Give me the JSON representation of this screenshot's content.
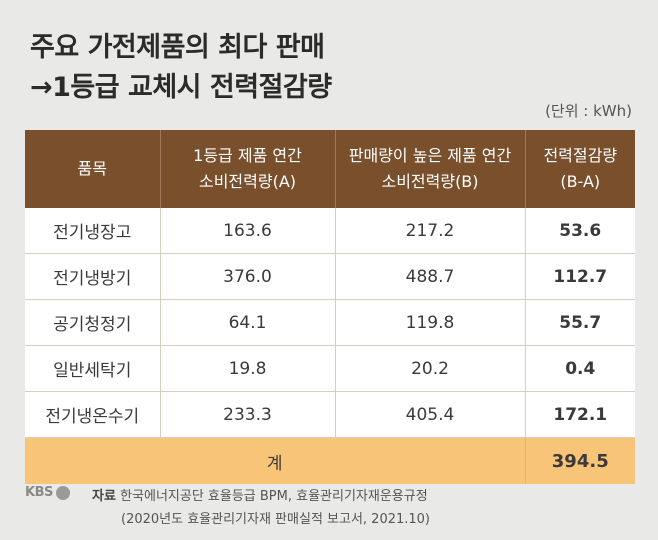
{
  "title": {
    "line1": "주요 가전제품의 최다 판매",
    "line2": "→1등급 교체시 전력절감량"
  },
  "unit": "(단위 : kWh)",
  "chart_data": {
    "type": "table",
    "columns": [
      {
        "line1": "품목",
        "line2": ""
      },
      {
        "line1": "1등급 제품 연간",
        "line2": "소비전력량(A)"
      },
      {
        "line1": "판매량이 높은 제품 연간",
        "line2": "소비전력량(B)"
      },
      {
        "line1": "전력절감량",
        "line2": "(B-A)"
      }
    ],
    "rows": [
      {
        "name": "전기냉장고",
        "a": "163.6",
        "b": "217.2",
        "diff": "53.6"
      },
      {
        "name": "전기냉방기",
        "a": "376.0",
        "b": "488.7",
        "diff": "112.7"
      },
      {
        "name": "공기청정기",
        "a": "64.1",
        "b": "119.8",
        "diff": "55.7"
      },
      {
        "name": "일반세탁기",
        "a": "19.8",
        "b": "20.2",
        "diff": "0.4"
      },
      {
        "name": "전기냉온수기",
        "a": "233.3",
        "b": "405.4",
        "diff": "172.1"
      }
    ],
    "total": {
      "label": "계",
      "diff": "394.5"
    }
  },
  "footer": {
    "logo": "KBS",
    "source_label": "자료",
    "source_text": "한국에너지공단 효율등급 BPM, 효율관리기자재운용규정",
    "source_text2": "(2020년도 효율관리기자재 판매실적 보고서, 2021.10)"
  }
}
